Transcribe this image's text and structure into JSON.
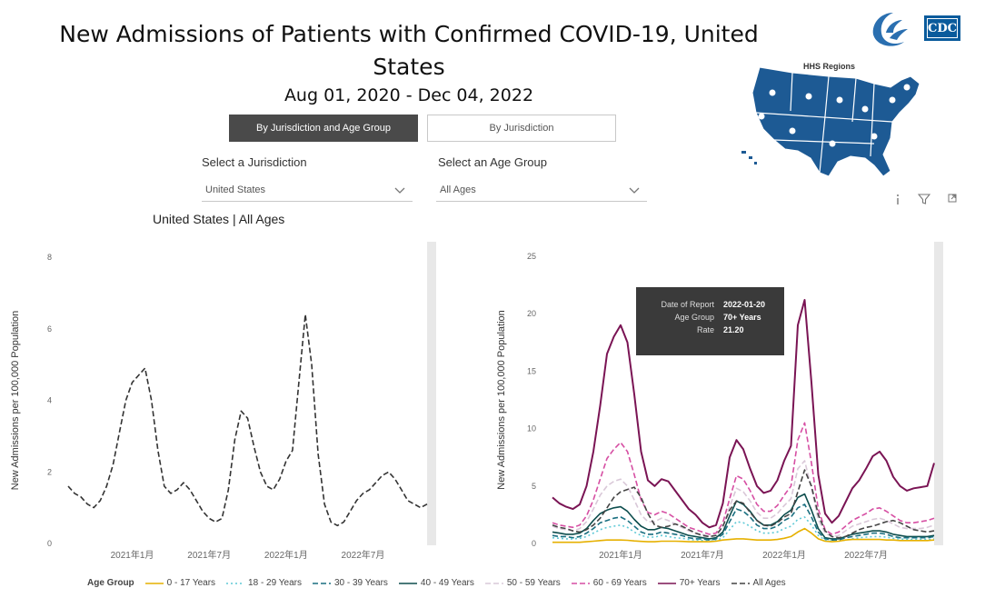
{
  "header": {
    "title": "New Admissions of Patients with Confirmed COVID-19, United States",
    "date_range": "Aug 01, 2020 - Dec 04, 2022"
  },
  "tabs": {
    "active": "By Jurisdiction and Age Group",
    "inactive": "By Jurisdiction"
  },
  "filters": {
    "jurisdiction_label": "Select a Jurisdiction",
    "jurisdiction_value": "United States",
    "age_label": "Select an Age Group",
    "age_value": "All Ages"
  },
  "logo": {
    "cdc_text": "CDC"
  },
  "map": {
    "label": "HHS Regions"
  },
  "visual_header_icons": [
    "info-icon",
    "filter-icon",
    "expand-icon"
  ],
  "left_chart_subtitle": "United States | All Ages",
  "tooltip": {
    "date_label": "Date of Report",
    "date_value": "2022-01-20",
    "age_label": "Age Group",
    "age_value": "70+ Years",
    "rate_label": "Rate",
    "rate_value": "21.20"
  },
  "legend": {
    "title": "Age Group",
    "items": [
      {
        "name": "0 - 17 Years",
        "color": "#e6b000",
        "dash": "solid"
      },
      {
        "name": "18 - 29 Years",
        "color": "#5ec9d6",
        "dash": "dot"
      },
      {
        "name": "30 - 39 Years",
        "color": "#1a6f80",
        "dash": "dash"
      },
      {
        "name": "40 - 49 Years",
        "color": "#0e4e4e",
        "dash": "solid"
      },
      {
        "name": "50 - 59 Years",
        "color": "#d9c8d8",
        "dash": "dash"
      },
      {
        "name": "60 - 69 Years",
        "color": "#d64fa3",
        "dash": "dash"
      },
      {
        "name": "70+ Years",
        "color": "#7a1454",
        "dash": "solid"
      },
      {
        "name": "All Ages",
        "color": "#444444",
        "dash": "dash"
      }
    ]
  },
  "chart_data": [
    {
      "type": "line",
      "title": "United States | All Ages",
      "ylabel": "New Admissions per 100,000 Population",
      "xlabel": "",
      "ylim": [
        0,
        8
      ],
      "yticks": [
        0,
        2,
        4,
        6,
        8
      ],
      "xticks": [
        {
          "x": 5,
          "label": "2021年1月"
        },
        {
          "x": 11,
          "label": "2021年7月"
        },
        {
          "x": 17,
          "label": "2022年1月"
        },
        {
          "x": 23,
          "label": "2022年7月"
        }
      ],
      "xlim": [
        0,
        28
      ],
      "series": [
        {
          "name": "All Ages",
          "color": "#333333",
          "dash": "dash",
          "x": [
            0,
            0.5,
            1,
            1.5,
            2,
            2.5,
            3,
            3.5,
            4,
            4.5,
            5,
            5.5,
            6,
            6.5,
            7,
            7.5,
            8,
            8.5,
            9,
            9.5,
            10,
            10.5,
            11,
            11.5,
            12,
            12.5,
            13,
            13.5,
            14,
            14.5,
            15,
            15.5,
            16,
            16.5,
            17,
            17.5,
            18,
            18.5,
            19,
            19.5,
            20,
            20.5,
            21,
            21.5,
            22,
            22.5,
            23,
            23.5,
            24,
            24.5,
            25,
            25.5,
            26,
            26.5,
            27,
            27.5,
            28
          ],
          "values": [
            1.6,
            1.4,
            1.3,
            1.1,
            1.0,
            1.2,
            1.6,
            2.2,
            3.1,
            4.0,
            4.5,
            4.7,
            4.9,
            4.0,
            2.6,
            1.6,
            1.4,
            1.5,
            1.7,
            1.5,
            1.2,
            0.9,
            0.7,
            0.6,
            0.7,
            1.5,
            2.9,
            3.7,
            3.5,
            2.7,
            2.0,
            1.6,
            1.5,
            1.8,
            2.3,
            2.6,
            4.5,
            6.4,
            5.0,
            2.5,
            1.1,
            0.6,
            0.5,
            0.6,
            0.9,
            1.2,
            1.4,
            1.5,
            1.7,
            1.9,
            2.0,
            1.8,
            1.5,
            1.2,
            1.1,
            1.0,
            1.1
          ]
        }
      ]
    },
    {
      "type": "line",
      "title": "",
      "ylabel": "New Admissions per 100,000 Population",
      "xlabel": "",
      "ylim": [
        0,
        25
      ],
      "yticks": [
        0,
        5,
        10,
        15,
        20,
        25
      ],
      "xticks": [
        {
          "x": 5,
          "label": "2021年1月"
        },
        {
          "x": 11,
          "label": "2021年7月"
        },
        {
          "x": 17,
          "label": "2022年1月"
        },
        {
          "x": 23,
          "label": "2022年7月"
        }
      ],
      "xlim": [
        0,
        28
      ],
      "series": [
        {
          "name": "70+ Years",
          "color": "#7a1454",
          "dash": "solid",
          "values": [
            4.0,
            3.5,
            3.2,
            3.0,
            3.4,
            5.0,
            8.0,
            12.0,
            16.5,
            18.0,
            19.0,
            17.5,
            13.0,
            8.0,
            5.5,
            5.0,
            5.6,
            5.4,
            4.6,
            3.8,
            3.0,
            2.5,
            1.8,
            1.4,
            1.6,
            3.5,
            7.5,
            9.0,
            8.2,
            6.5,
            5.0,
            4.4,
            4.6,
            5.5,
            7.2,
            8.5,
            19.0,
            21.2,
            14.0,
            6.0,
            2.6,
            1.8,
            2.4,
            3.6,
            4.8,
            5.5,
            6.5,
            7.6,
            8.0,
            7.2,
            5.8,
            5.0,
            4.6,
            4.8,
            4.9,
            5.0,
            7.0
          ]
        },
        {
          "name": "60-69 Years",
          "color": "#d64fa3",
          "dash": "dash",
          "values": [
            1.8,
            1.6,
            1.5,
            1.4,
            1.6,
            2.4,
            3.8,
            5.6,
            7.4,
            8.2,
            8.8,
            8.0,
            6.0,
            3.8,
            2.7,
            2.5,
            2.8,
            2.6,
            2.2,
            1.8,
            1.4,
            1.2,
            1.0,
            0.8,
            0.9,
            1.8,
            3.9,
            5.9,
            5.6,
            4.6,
            3.4,
            2.8,
            2.8,
            3.3,
            4.2,
            5.0,
            9.0,
            10.5,
            7.0,
            3.0,
            1.2,
            0.8,
            1.0,
            1.5,
            2.0,
            2.3,
            2.6,
            3.0,
            3.1,
            2.8,
            2.4,
            2.0,
            1.8,
            1.8,
            1.9,
            2.0,
            2.2
          ]
        },
        {
          "name": "50-59 Years",
          "color": "#d9c8d8",
          "dash": "dash",
          "values": [
            1.5,
            1.3,
            1.2,
            1.1,
            1.3,
            1.9,
            3.0,
            4.2,
            5.0,
            5.4,
            5.6,
            5.0,
            3.8,
            2.5,
            1.9,
            1.9,
            2.2,
            2.0,
            1.7,
            1.4,
            1.1,
            0.9,
            0.8,
            0.6,
            0.7,
            1.4,
            3.2,
            4.8,
            4.5,
            3.7,
            2.7,
            2.2,
            2.2,
            2.6,
            3.3,
            3.9,
            6.5,
            7.2,
            4.8,
            2.1,
            0.9,
            0.6,
            0.7,
            1.1,
            1.5,
            1.7,
            1.9,
            2.1,
            2.2,
            2.0,
            1.7,
            1.4,
            1.3,
            1.3,
            1.3,
            1.4,
            1.6
          ]
        },
        {
          "name": "40-49 Years",
          "color": "#0e4e4e",
          "dash": "solid",
          "values": [
            1.0,
            0.9,
            0.8,
            0.8,
            0.9,
            1.3,
            2.0,
            2.6,
            2.9,
            3.1,
            3.2,
            2.8,
            2.1,
            1.5,
            1.2,
            1.2,
            1.4,
            1.3,
            1.1,
            0.9,
            0.7,
            0.6,
            0.5,
            0.4,
            0.5,
            1.0,
            2.4,
            3.7,
            3.4,
            2.8,
            2.0,
            1.6,
            1.6,
            1.9,
            2.5,
            2.9,
            4.0,
            4.3,
            2.9,
            1.3,
            0.5,
            0.4,
            0.4,
            0.6,
            0.8,
            0.9,
            1.0,
            1.1,
            1.1,
            1.0,
            0.8,
            0.7,
            0.6,
            0.6,
            0.6,
            0.6,
            0.7
          ]
        },
        {
          "name": "30-39 Years",
          "color": "#1a6f80",
          "dash": "dash",
          "values": [
            0.7,
            0.6,
            0.6,
            0.5,
            0.6,
            0.9,
            1.3,
            1.8,
            2.0,
            2.2,
            2.3,
            2.0,
            1.5,
            1.0,
            0.8,
            0.8,
            1.0,
            0.9,
            0.8,
            0.7,
            0.5,
            0.4,
            0.4,
            0.3,
            0.4,
            0.8,
            1.9,
            3.0,
            2.8,
            2.3,
            1.6,
            1.3,
            1.3,
            1.5,
            2.0,
            2.3,
            3.1,
            3.4,
            2.3,
            1.0,
            0.4,
            0.3,
            0.3,
            0.5,
            0.6,
            0.7,
            0.8,
            0.9,
            0.9,
            0.8,
            0.6,
            0.5,
            0.5,
            0.5,
            0.5,
            0.5,
            0.6
          ]
        },
        {
          "name": "18-29 Years",
          "color": "#5ec9d6",
          "dash": "dot",
          "values": [
            0.5,
            0.45,
            0.4,
            0.4,
            0.45,
            0.6,
            0.9,
            1.2,
            1.4,
            1.5,
            1.6,
            1.4,
            1.0,
            0.7,
            0.55,
            0.55,
            0.7,
            0.6,
            0.5,
            0.45,
            0.35,
            0.3,
            0.25,
            0.2,
            0.25,
            0.5,
            1.2,
            1.9,
            1.8,
            1.5,
            1.1,
            0.9,
            0.9,
            1.0,
            1.3,
            1.5,
            2.1,
            2.3,
            1.6,
            0.7,
            0.3,
            0.2,
            0.2,
            0.3,
            0.4,
            0.5,
            0.55,
            0.6,
            0.6,
            0.55,
            0.45,
            0.4,
            0.35,
            0.35,
            0.35,
            0.35,
            0.4
          ]
        },
        {
          "name": "0-17 Years",
          "color": "#e6b000",
          "dash": "solid",
          "values": [
            0.1,
            0.1,
            0.1,
            0.1,
            0.1,
            0.15,
            0.2,
            0.25,
            0.3,
            0.3,
            0.3,
            0.28,
            0.22,
            0.18,
            0.15,
            0.15,
            0.2,
            0.2,
            0.2,
            0.18,
            0.15,
            0.15,
            0.15,
            0.15,
            0.2,
            0.3,
            0.35,
            0.4,
            0.4,
            0.35,
            0.3,
            0.3,
            0.3,
            0.35,
            0.45,
            0.6,
            1.0,
            1.3,
            0.9,
            0.4,
            0.2,
            0.15,
            0.2,
            0.3,
            0.35,
            0.35,
            0.35,
            0.35,
            0.35,
            0.3,
            0.3,
            0.25,
            0.25,
            0.25,
            0.25,
            0.25,
            0.3
          ]
        },
        {
          "name": "All Ages",
          "color": "#444444",
          "dash": "dash",
          "values": [
            1.6,
            1.4,
            1.3,
            1.1,
            1.0,
            1.2,
            1.6,
            2.2,
            3.1,
            4.0,
            4.5,
            4.7,
            4.9,
            4.0,
            2.6,
            1.6,
            1.4,
            1.5,
            1.7,
            1.5,
            1.2,
            0.9,
            0.7,
            0.6,
            0.7,
            1.5,
            2.9,
            3.7,
            3.5,
            2.7,
            2.0,
            1.6,
            1.5,
            1.8,
            2.3,
            2.6,
            4.5,
            6.4,
            5.0,
            2.5,
            1.1,
            0.6,
            0.5,
            0.6,
            0.9,
            1.2,
            1.4,
            1.5,
            1.7,
            1.9,
            2.0,
            1.8,
            1.5,
            1.2,
            1.1,
            1.0,
            1.1
          ]
        }
      ]
    }
  ]
}
